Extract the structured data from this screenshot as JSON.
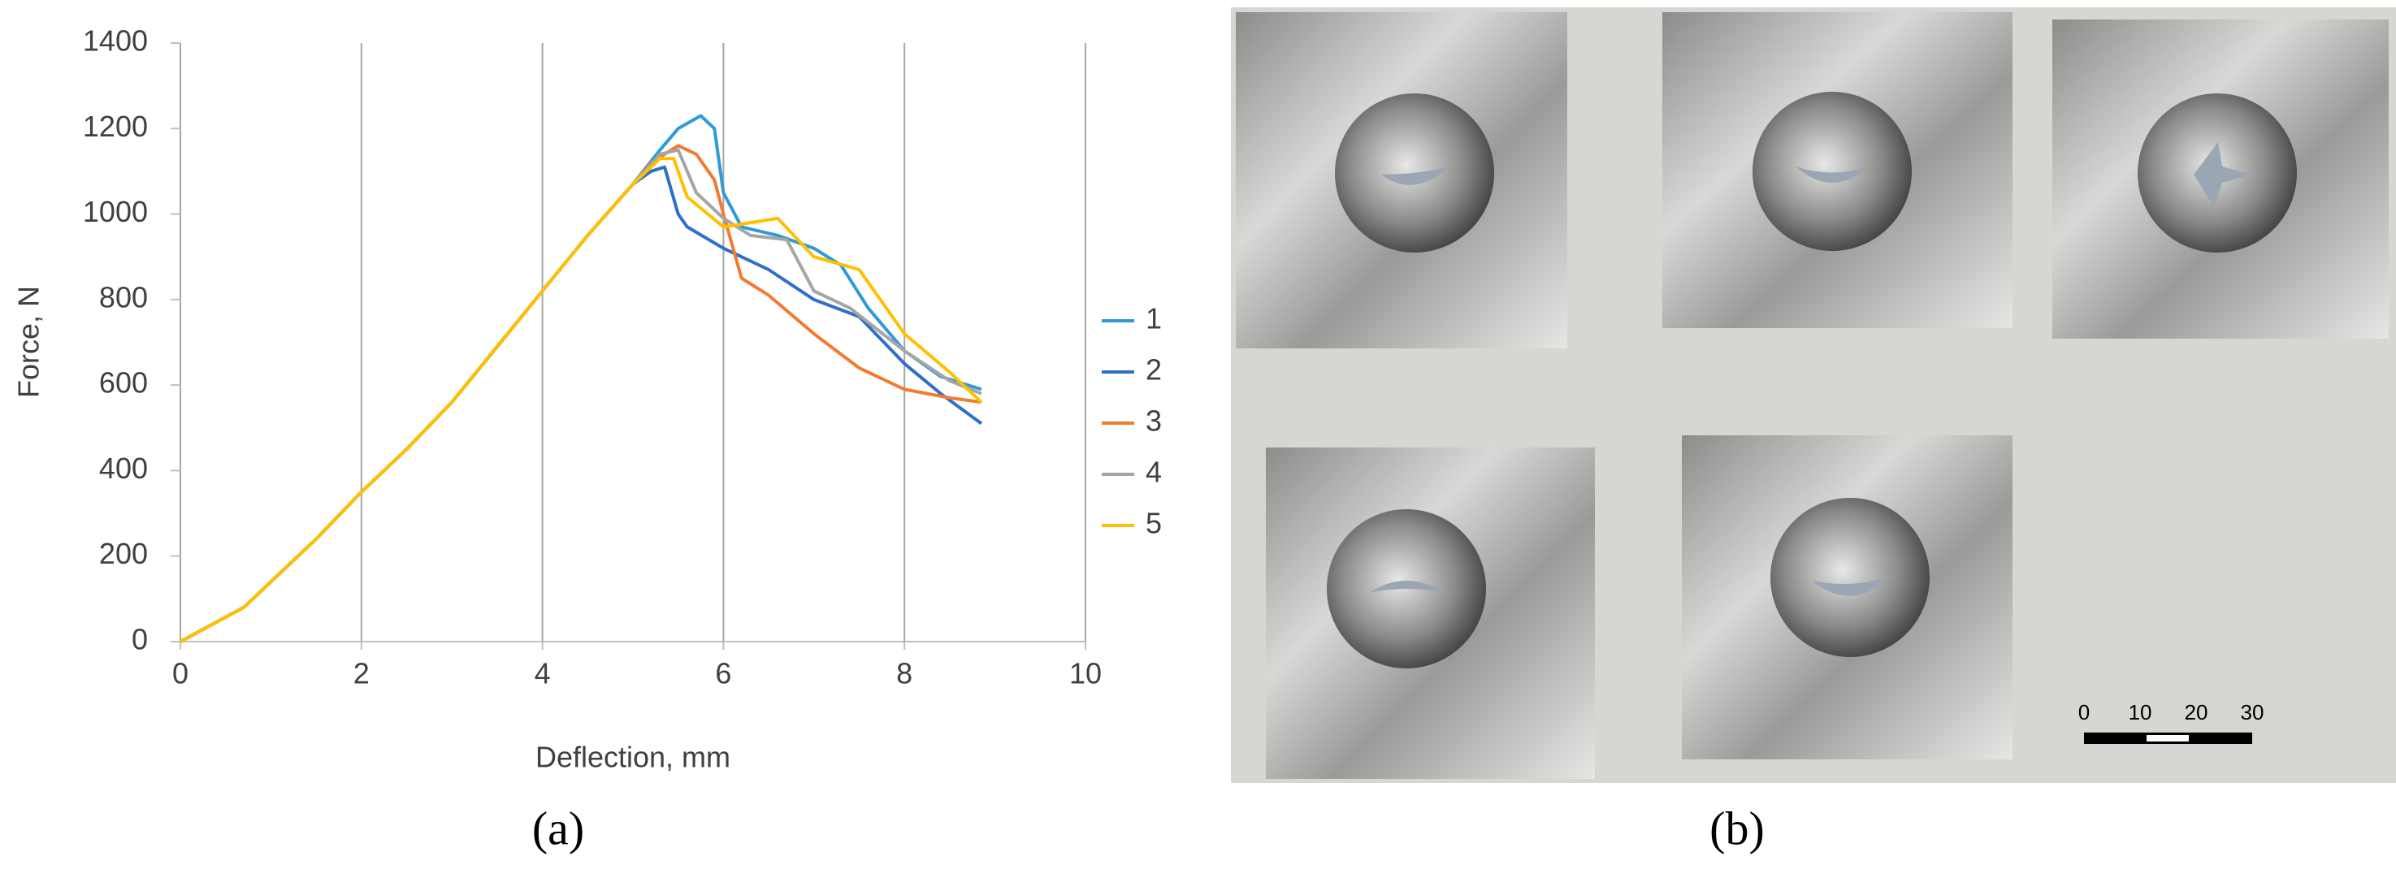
{
  "chart_data": {
    "type": "line",
    "x_label": "Deflection, mm",
    "y_label": "Force, N",
    "xlim": [
      0,
      10
    ],
    "xticks": [
      0,
      2,
      4,
      6,
      8,
      10
    ],
    "ylim": [
      0,
      1400
    ],
    "yticks": [
      0,
      200,
      400,
      600,
      800,
      1000,
      1200,
      1400
    ],
    "grid": "x",
    "legend": "right",
    "series": [
      {
        "name": "1",
        "color": "#2e9bd6",
        "x": [
          0,
          0.7,
          1,
          1.5,
          2,
          2.5,
          3,
          3.5,
          4,
          4.5,
          5,
          5.3,
          5.5,
          5.75,
          5.9,
          6.0,
          6.2,
          6.6,
          7,
          7.3,
          7.6,
          8,
          8.4,
          8.85
        ],
        "values": [
          0,
          80,
          140,
          240,
          350,
          450,
          560,
          690,
          820,
          950,
          1070,
          1150,
          1200,
          1230,
          1200,
          1050,
          970,
          950,
          920,
          880,
          780,
          680,
          620,
          590
        ]
      },
      {
        "name": "2",
        "color": "#2f6fc7",
        "x": [
          0,
          0.7,
          1,
          1.5,
          2,
          2.5,
          3,
          3.5,
          4,
          4.5,
          5,
          5.2,
          5.35,
          5.5,
          5.6,
          6,
          6.5,
          7,
          7.5,
          8,
          8.4,
          8.85
        ],
        "values": [
          0,
          80,
          140,
          240,
          350,
          450,
          560,
          690,
          820,
          950,
          1070,
          1100,
          1110,
          1000,
          970,
          920,
          870,
          800,
          760,
          650,
          580,
          510
        ]
      },
      {
        "name": "3",
        "color": "#f47a30",
        "x": [
          0,
          0.7,
          1,
          1.5,
          2,
          2.5,
          3,
          3.5,
          4,
          4.5,
          5,
          5.2,
          5.5,
          5.7,
          5.9,
          6,
          6.2,
          6.5,
          7,
          7.5,
          8,
          8.5,
          8.85
        ],
        "values": [
          0,
          80,
          140,
          240,
          350,
          450,
          560,
          690,
          820,
          950,
          1070,
          1120,
          1160,
          1140,
          1080,
          1000,
          850,
          810,
          720,
          640,
          590,
          570,
          560
        ]
      },
      {
        "name": "4",
        "color": "#a5a5a5",
        "x": [
          0,
          0.7,
          1,
          1.5,
          2,
          2.5,
          3,
          3.5,
          4,
          4.5,
          5,
          5.3,
          5.5,
          5.7,
          6,
          6.3,
          6.7,
          7,
          7.4,
          8,
          8.5,
          8.85
        ],
        "values": [
          0,
          80,
          140,
          240,
          350,
          450,
          560,
          690,
          820,
          950,
          1070,
          1140,
          1150,
          1050,
          990,
          950,
          940,
          820,
          780,
          680,
          610,
          580
        ]
      },
      {
        "name": "5",
        "color": "#ffc000",
        "x": [
          0,
          0.7,
          1,
          1.5,
          2,
          2.5,
          3,
          3.5,
          4,
          4.5,
          5,
          5.3,
          5.45,
          5.6,
          6,
          6.3,
          6.6,
          7,
          7.5,
          8,
          8.5,
          8.85
        ],
        "values": [
          0,
          80,
          140,
          240,
          350,
          450,
          560,
          690,
          820,
          950,
          1070,
          1130,
          1130,
          1040,
          970,
          980,
          990,
          900,
          870,
          720,
          630,
          560
        ]
      }
    ]
  },
  "panel_labels": [
    "(a)",
    "(b)"
  ],
  "photo": {
    "scale_bar": {
      "ticks": [
        0,
        10,
        20,
        30
      ]
    }
  }
}
